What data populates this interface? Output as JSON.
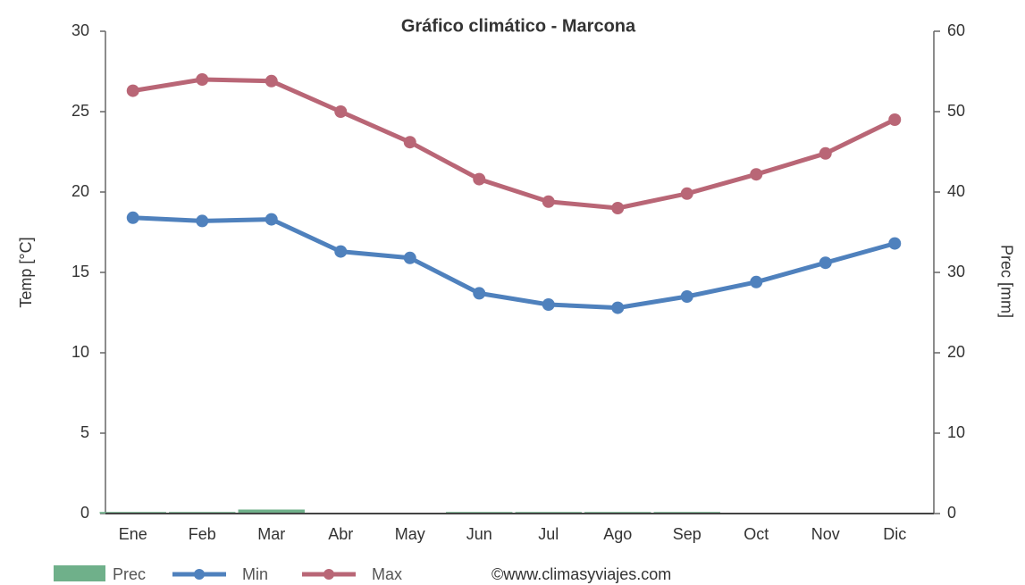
{
  "chart_data": {
    "type": "combo",
    "title": "Gráfico climático - Marcona",
    "y_label": "Temp [°C]",
    "y2_label": "Prec [mm]",
    "source": "©www.climasyviajes.com",
    "categories": [
      "Ene",
      "Feb",
      "Mar",
      "Abr",
      "May",
      "Jun",
      "Jul",
      "Ago",
      "Sep",
      "Oct",
      "Nov",
      "Dic"
    ],
    "series": [
      {
        "name": "Prec",
        "type": "bar",
        "axis": "y2",
        "color": "#6fb08a",
        "values": [
          0.2,
          0.2,
          0.5,
          0,
          0,
          0.2,
          0.2,
          0.2,
          0.2,
          0,
          0,
          0
        ]
      },
      {
        "name": "Min",
        "type": "line",
        "color": "#4f81bd",
        "values": [
          18.4,
          18.2,
          18.3,
          16.3,
          15.9,
          13.7,
          13.0,
          12.8,
          13.5,
          14.4,
          15.6,
          16.8
        ]
      },
      {
        "name": "Max",
        "type": "line",
        "color": "#b96676",
        "values": [
          26.3,
          27.0,
          26.9,
          25.0,
          23.1,
          20.8,
          19.4,
          19.0,
          19.9,
          21.1,
          22.4,
          24.5
        ]
      }
    ],
    "ylim": [
      0,
      30
    ],
    "yticks": [
      0,
      5,
      10,
      15,
      20,
      25,
      30
    ],
    "y2lim": [
      0,
      60
    ],
    "y2ticks": [
      0,
      10,
      20,
      30,
      40,
      50,
      60
    ]
  }
}
